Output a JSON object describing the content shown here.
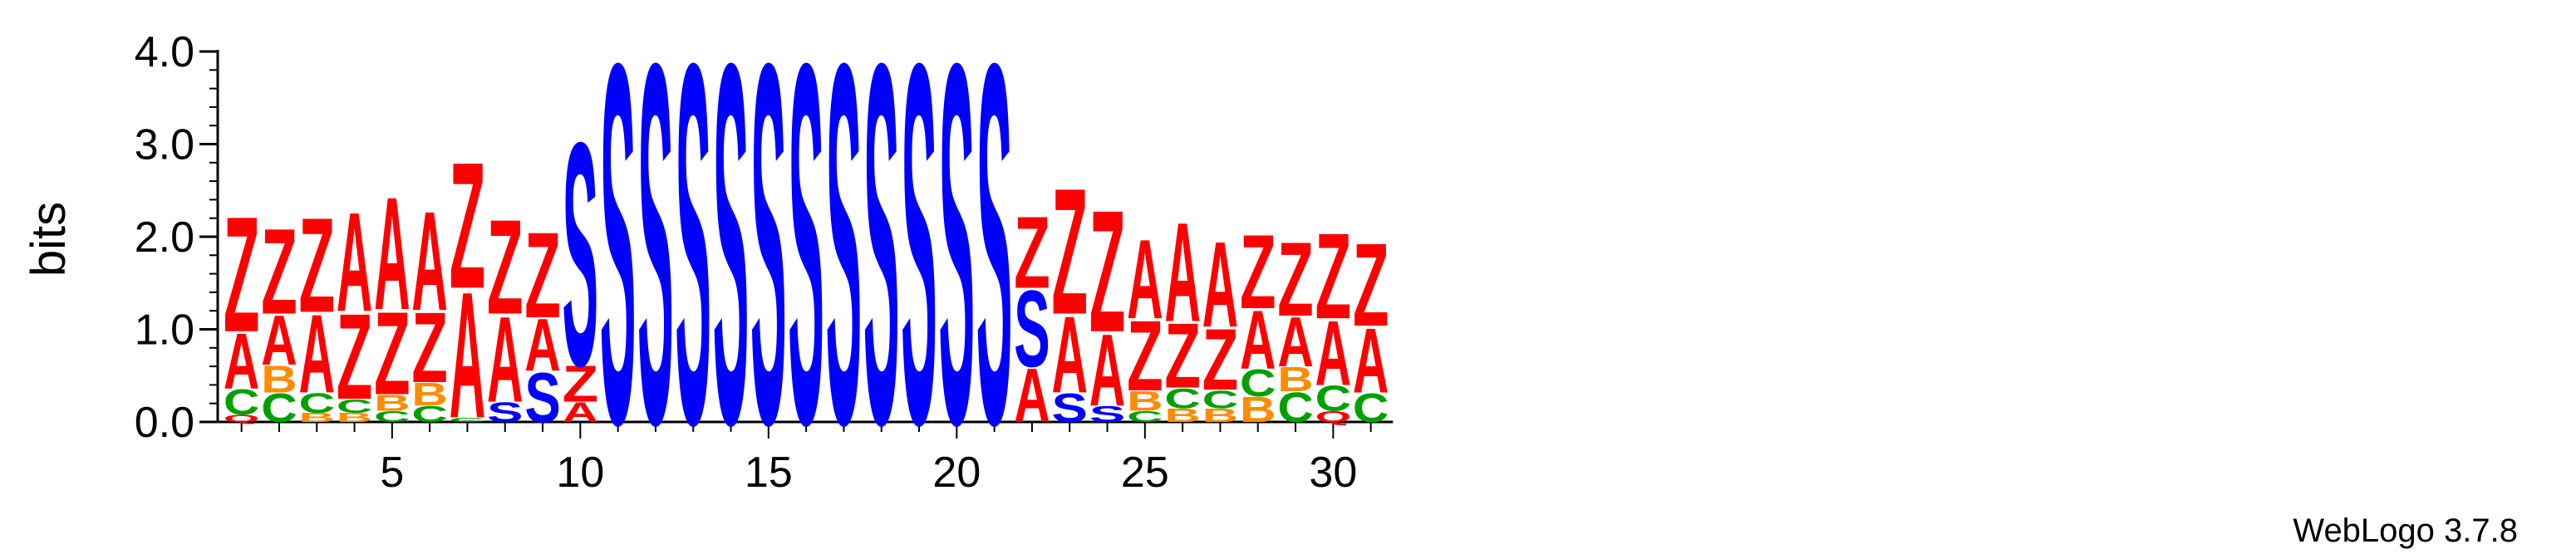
{
  "chart_data": {
    "type": "sequence-logo",
    "ylabel": "bits",
    "ylim": [
      0,
      4.0
    ],
    "yticks": [
      "0.0",
      "1.0",
      "2.0",
      "3.0",
      "4.0"
    ],
    "xticks": [
      5,
      10,
      15,
      20,
      25,
      30
    ],
    "positions": [
      1,
      2,
      3,
      4,
      5,
      6,
      7,
      8,
      9,
      10,
      11,
      12,
      13,
      14,
      15,
      16,
      17,
      18,
      19,
      20,
      21,
      22,
      23,
      24,
      25,
      26,
      27,
      28,
      29,
      30,
      31
    ],
    "colors": {
      "Z": "#ff0000",
      "A": "#ff0000",
      "S": "#0000ff",
      "C": "#00a000",
      "B": "#ff8c00",
      "Q": "#ff0000"
    },
    "stacks": [
      [
        {
          "letter": "Q",
          "bits": 0.08
        },
        {
          "letter": "C",
          "bits": 0.28
        },
        {
          "letter": "A",
          "bits": 0.62
        },
        {
          "letter": "Z",
          "bits": 1.28
        }
      ],
      [
        {
          "letter": "C",
          "bits": 0.32
        },
        {
          "letter": "B",
          "bits": 0.3
        },
        {
          "letter": "A",
          "bits": 0.55
        },
        {
          "letter": "Z",
          "bits": 0.95
        }
      ],
      [
        {
          "letter": "B",
          "bits": 0.1
        },
        {
          "letter": "C",
          "bits": 0.22
        },
        {
          "letter": "A",
          "bits": 0.87
        },
        {
          "letter": "Z",
          "bits": 1.05
        }
      ],
      [
        {
          "letter": "B",
          "bits": 0.1
        },
        {
          "letter": "C",
          "bits": 0.15
        },
        {
          "letter": "Z",
          "bits": 0.95
        },
        {
          "letter": "A",
          "bits": 1.1
        }
      ],
      [
        {
          "letter": "C",
          "bits": 0.12
        },
        {
          "letter": "B",
          "bits": 0.18
        },
        {
          "letter": "Z",
          "bits": 0.92
        },
        {
          "letter": "A",
          "bits": 1.25
        }
      ],
      [
        {
          "letter": "C",
          "bits": 0.18
        },
        {
          "letter": "B",
          "bits": 0.25
        },
        {
          "letter": "Z",
          "bits": 0.78
        },
        {
          "letter": "A",
          "bits": 1.1
        }
      ],
      [
        {
          "letter": "C",
          "bits": 0.05
        },
        {
          "letter": "A",
          "bits": 1.4
        },
        {
          "letter": "Z",
          "bits": 1.4
        }
      ],
      [
        {
          "letter": "S",
          "bits": 0.22
        },
        {
          "letter": "A",
          "bits": 0.95
        },
        {
          "letter": "Z",
          "bits": 1.05
        }
      ],
      [
        {
          "letter": "S",
          "bits": 0.55
        },
        {
          "letter": "A",
          "bits": 0.58
        },
        {
          "letter": "Z",
          "bits": 0.95
        }
      ],
      [
        {
          "letter": "A",
          "bits": 0.22
        },
        {
          "letter": "Z",
          "bits": 0.4
        },
        {
          "letter": "S",
          "bits": 2.48
        }
      ],
      [
        {
          "letter": "S",
          "bits": 4.0
        }
      ],
      [
        {
          "letter": "S",
          "bits": 4.0
        }
      ],
      [
        {
          "letter": "S",
          "bits": 4.0
        }
      ],
      [
        {
          "letter": "S",
          "bits": 4.0
        }
      ],
      [
        {
          "letter": "S",
          "bits": 4.0
        }
      ],
      [
        {
          "letter": "S",
          "bits": 4.0
        }
      ],
      [
        {
          "letter": "S",
          "bits": 4.0
        }
      ],
      [
        {
          "letter": "S",
          "bits": 4.0
        }
      ],
      [
        {
          "letter": "S",
          "bits": 4.0
        }
      ],
      [
        {
          "letter": "S",
          "bits": 4.0
        }
      ],
      [
        {
          "letter": "S",
          "bits": 4.0
        }
      ],
      [
        {
          "letter": "A",
          "bits": 0.6
        },
        {
          "letter": "S",
          "bits": 0.85
        },
        {
          "letter": "Z",
          "bits": 0.8
        }
      ],
      [
        {
          "letter": "S",
          "bits": 0.32
        },
        {
          "letter": "A",
          "bits": 0.85
        },
        {
          "letter": "Z",
          "bits": 1.4
        }
      ],
      [
        {
          "letter": "S",
          "bits": 0.18
        },
        {
          "letter": "A",
          "bits": 0.8
        },
        {
          "letter": "Z",
          "bits": 1.35
        }
      ],
      [
        {
          "letter": "C",
          "bits": 0.12
        },
        {
          "letter": "B",
          "bits": 0.22
        },
        {
          "letter": "Z",
          "bits": 0.78
        },
        {
          "letter": "A",
          "bits": 0.88
        }
      ],
      [
        {
          "letter": "B",
          "bits": 0.15
        },
        {
          "letter": "C",
          "bits": 0.22
        },
        {
          "letter": "Z",
          "bits": 0.72
        },
        {
          "letter": "A",
          "bits": 1.1
        }
      ],
      [
        {
          "letter": "B",
          "bits": 0.15
        },
        {
          "letter": "C",
          "bits": 0.2
        },
        {
          "letter": "Z",
          "bits": 0.68
        },
        {
          "letter": "A",
          "bits": 0.95
        }
      ],
      [
        {
          "letter": "B",
          "bits": 0.28
        },
        {
          "letter": "C",
          "bits": 0.3
        },
        {
          "letter": "A",
          "bits": 0.65
        },
        {
          "letter": "Z",
          "bits": 0.82
        }
      ],
      [
        {
          "letter": "C",
          "bits": 0.33
        },
        {
          "letter": "B",
          "bits": 0.27
        },
        {
          "letter": "A",
          "bits": 0.55
        },
        {
          "letter": "Z",
          "bits": 0.82
        }
      ],
      [
        {
          "letter": "Q",
          "bits": 0.12
        },
        {
          "letter": "C",
          "bits": 0.28
        },
        {
          "letter": "A",
          "bits": 0.72
        },
        {
          "letter": "Z",
          "bits": 0.95
        }
      ],
      [
        {
          "letter": "C",
          "bits": 0.32
        },
        {
          "letter": "A",
          "bits": 0.72
        },
        {
          "letter": "Z",
          "bits": 0.92
        }
      ]
    ]
  },
  "footer": {
    "version_label": "WebLogo 3.7.8"
  }
}
